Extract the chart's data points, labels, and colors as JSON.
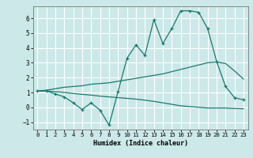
{
  "xlabel": "Humidex (Indice chaleur)",
  "bg_color": "#cce8e8",
  "grid_color": "#ffffff",
  "line_color": "#1a7a6e",
  "xlim": [
    -0.5,
    23.5
  ],
  "ylim": [
    -1.5,
    6.8
  ],
  "yticks": [
    -1,
    0,
    1,
    2,
    3,
    4,
    5,
    6
  ],
  "xticks": [
    0,
    1,
    2,
    3,
    4,
    5,
    6,
    7,
    8,
    9,
    10,
    11,
    12,
    13,
    14,
    15,
    16,
    17,
    18,
    19,
    20,
    21,
    22,
    23
  ],
  "line1_x": [
    0,
    1,
    2,
    3,
    4,
    5,
    6,
    7,
    8,
    9,
    10,
    11,
    12,
    13,
    14,
    15,
    16,
    17,
    18,
    19,
    20,
    21,
    22,
    23
  ],
  "line1_y": [
    1.1,
    1.1,
    0.9,
    0.7,
    0.3,
    -0.15,
    0.3,
    -0.2,
    -1.2,
    1.05,
    3.3,
    4.2,
    3.5,
    5.9,
    4.3,
    5.3,
    6.5,
    6.5,
    6.4,
    5.3,
    3.1,
    1.4,
    0.65,
    0.5
  ],
  "line2_x": [
    0,
    1,
    2,
    3,
    4,
    5,
    6,
    7,
    8,
    9,
    10,
    11,
    12,
    13,
    14,
    15,
    16,
    17,
    18,
    19,
    20,
    21,
    22,
    23
  ],
  "line2_y": [
    1.1,
    1.15,
    1.25,
    1.35,
    1.4,
    1.45,
    1.55,
    1.6,
    1.65,
    1.75,
    1.85,
    1.95,
    2.05,
    2.15,
    2.25,
    2.4,
    2.55,
    2.7,
    2.85,
    3.0,
    3.05,
    2.95,
    2.45,
    1.9
  ],
  "line3_x": [
    0,
    1,
    2,
    3,
    4,
    5,
    6,
    7,
    8,
    9,
    10,
    11,
    12,
    13,
    14,
    15,
    16,
    17,
    18,
    19,
    20,
    21,
    22,
    23
  ],
  "line3_y": [
    1.1,
    1.1,
    1.05,
    1.0,
    0.93,
    0.87,
    0.82,
    0.75,
    0.7,
    0.65,
    0.6,
    0.55,
    0.48,
    0.4,
    0.3,
    0.2,
    0.1,
    0.05,
    0.0,
    -0.05,
    -0.05,
    -0.05,
    -0.08,
    -0.1
  ]
}
